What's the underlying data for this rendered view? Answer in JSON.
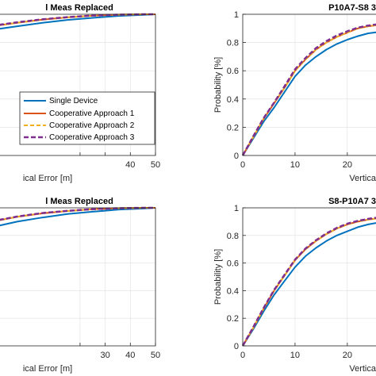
{
  "colors": {
    "single": "#0072bd",
    "coop1": "#d95319",
    "coop2": "#edb120",
    "coop3": "#7e2f8e",
    "axis": "#262626",
    "grid": "#dfdfdf"
  },
  "legend": {
    "entries": [
      "Single Device",
      "Cooperative Approach 1",
      "Cooperative Approach 2",
      "Cooperative Approach 3"
    ]
  },
  "chart_data": [
    {
      "type": "line",
      "title": "l Meas Replaced",
      "xlabel": "ical Error [m]",
      "ylabel": "",
      "xlim": [
        -15,
        50
      ],
      "ylim": [
        0,
        1
      ],
      "xticks": [
        20,
        30,
        40,
        50
      ],
      "xtick_labels": [
        "",
        "",
        "40",
        "50"
      ],
      "yticks": [],
      "grid": true,
      "legend_visible": true,
      "legend_position": "lower-right",
      "series": [
        {
          "key": "single",
          "x": [
            -15,
            -5,
            5,
            15,
            25,
            35,
            45,
            50
          ],
          "y": [
            0.89,
            0.915,
            0.94,
            0.96,
            0.975,
            0.988,
            0.996,
            1.0
          ]
        },
        {
          "key": "coop1",
          "x": [
            -15,
            -5,
            5,
            15,
            25,
            35,
            45,
            50
          ],
          "y": [
            0.915,
            0.94,
            0.962,
            0.978,
            0.99,
            0.997,
            1.0,
            1.0
          ]
        },
        {
          "key": "coop2",
          "x": [
            -15,
            -5,
            5,
            15,
            25,
            35,
            45,
            50
          ],
          "y": [
            0.915,
            0.94,
            0.962,
            0.978,
            0.99,
            0.997,
            1.0,
            1.0
          ]
        },
        {
          "key": "coop3",
          "x": [
            -15,
            -5,
            5,
            15,
            25,
            35,
            45,
            50
          ],
          "y": [
            0.918,
            0.943,
            0.964,
            0.98,
            0.991,
            0.997,
            1.0,
            1.0
          ]
        }
      ]
    },
    {
      "type": "line",
      "title": "P10A7-S8 3",
      "xlabel": "Vertica",
      "ylabel": "Probability [%]",
      "xlim": [
        0,
        27
      ],
      "ylim": [
        0,
        1
      ],
      "xticks": [
        0,
        10,
        20
      ],
      "xtick_labels": [
        "0",
        "10",
        "20"
      ],
      "yticks": [
        0,
        0.2,
        0.4,
        0.6,
        0.8,
        1
      ],
      "ytick_labels": [
        "0",
        "0.2",
        "0.4",
        "0.6",
        "0.8",
        "1"
      ],
      "grid": true,
      "legend_visible": false,
      "series": [
        {
          "key": "single",
          "x": [
            0,
            2,
            4,
            6,
            8,
            10,
            12,
            14,
            16,
            18,
            20,
            22,
            24,
            27
          ],
          "y": [
            0,
            0.12,
            0.24,
            0.34,
            0.45,
            0.56,
            0.64,
            0.7,
            0.75,
            0.79,
            0.82,
            0.845,
            0.865,
            0.88
          ]
        },
        {
          "key": "coop1",
          "x": [
            0,
            2,
            4,
            6,
            8,
            10,
            12,
            14,
            16,
            18,
            20,
            22,
            24,
            27
          ],
          "y": [
            0,
            0.13,
            0.26,
            0.37,
            0.48,
            0.6,
            0.68,
            0.75,
            0.8,
            0.84,
            0.87,
            0.9,
            0.915,
            0.93
          ]
        },
        {
          "key": "coop2",
          "x": [
            0,
            2,
            4,
            6,
            8,
            10,
            12,
            14,
            16,
            18,
            20,
            22,
            24,
            27
          ],
          "y": [
            0,
            0.13,
            0.26,
            0.37,
            0.48,
            0.6,
            0.68,
            0.75,
            0.8,
            0.84,
            0.87,
            0.9,
            0.915,
            0.93
          ]
        },
        {
          "key": "coop3",
          "x": [
            0,
            2,
            4,
            6,
            8,
            10,
            12,
            14,
            16,
            18,
            20,
            22,
            24,
            27
          ],
          "y": [
            0,
            0.135,
            0.265,
            0.375,
            0.49,
            0.61,
            0.69,
            0.76,
            0.81,
            0.85,
            0.88,
            0.905,
            0.92,
            0.935
          ]
        }
      ]
    },
    {
      "type": "line",
      "title": "l Meas Replaced",
      "xlabel": "ical Error [m]",
      "ylabel": "",
      "xlim": [
        -15,
        50
      ],
      "ylim": [
        0,
        1
      ],
      "xticks": [
        20,
        30,
        40,
        50
      ],
      "xtick_labels": [
        "",
        "30",
        "40",
        "50"
      ],
      "yticks": [],
      "grid": true,
      "legend_visible": false,
      "series": [
        {
          "key": "single",
          "x": [
            -15,
            -5,
            5,
            15,
            25,
            35,
            45,
            50
          ],
          "y": [
            0.86,
            0.9,
            0.93,
            0.955,
            0.972,
            0.987,
            0.995,
            1.0
          ]
        },
        {
          "key": "coop1",
          "x": [
            -15,
            -5,
            5,
            15,
            25,
            35,
            45,
            50
          ],
          "y": [
            0.9,
            0.935,
            0.96,
            0.977,
            0.99,
            0.997,
            1.0,
            1.0
          ]
        },
        {
          "key": "coop2",
          "x": [
            -15,
            -5,
            5,
            15,
            25,
            35,
            45,
            50
          ],
          "y": [
            0.9,
            0.935,
            0.96,
            0.977,
            0.99,
            0.997,
            1.0,
            1.0
          ]
        },
        {
          "key": "coop3",
          "x": [
            -15,
            -5,
            5,
            15,
            25,
            35,
            45,
            50
          ],
          "y": [
            0.903,
            0.937,
            0.962,
            0.978,
            0.99,
            0.997,
            1.0,
            1.0
          ]
        }
      ]
    },
    {
      "type": "line",
      "title": "S8-P10A7 3",
      "xlabel": "Vertica",
      "ylabel": "Probability [%]",
      "xlim": [
        0,
        27
      ],
      "ylim": [
        0,
        1
      ],
      "xticks": [
        0,
        10,
        20
      ],
      "xtick_labels": [
        "0",
        "10",
        "20"
      ],
      "yticks": [
        0,
        0.2,
        0.4,
        0.6,
        0.8,
        1
      ],
      "ytick_labels": [
        "0",
        "0.2",
        "0.4",
        "0.6",
        "0.8",
        "1"
      ],
      "grid": true,
      "legend_visible": false,
      "series": [
        {
          "key": "single",
          "x": [
            0,
            2,
            4,
            6,
            8,
            10,
            12,
            14,
            16,
            18,
            20,
            22,
            24,
            27
          ],
          "y": [
            0,
            0.12,
            0.25,
            0.37,
            0.47,
            0.57,
            0.65,
            0.71,
            0.76,
            0.8,
            0.83,
            0.86,
            0.88,
            0.9
          ]
        },
        {
          "key": "coop1",
          "x": [
            0,
            2,
            4,
            6,
            8,
            10,
            12,
            14,
            16,
            18,
            20,
            22,
            24,
            27
          ],
          "y": [
            0,
            0.13,
            0.27,
            0.4,
            0.51,
            0.62,
            0.7,
            0.76,
            0.81,
            0.85,
            0.88,
            0.9,
            0.915,
            0.93
          ]
        },
        {
          "key": "coop2",
          "x": [
            0,
            2,
            4,
            6,
            8,
            10,
            12,
            14,
            16,
            18,
            20,
            22,
            24,
            27
          ],
          "y": [
            0,
            0.13,
            0.27,
            0.4,
            0.51,
            0.62,
            0.7,
            0.76,
            0.81,
            0.85,
            0.88,
            0.9,
            0.915,
            0.93
          ]
        },
        {
          "key": "coop3",
          "x": [
            0,
            2,
            4,
            6,
            8,
            10,
            12,
            14,
            16,
            18,
            20,
            22,
            24,
            27
          ],
          "y": [
            0,
            0.135,
            0.275,
            0.405,
            0.515,
            0.625,
            0.705,
            0.765,
            0.815,
            0.855,
            0.885,
            0.905,
            0.92,
            0.935
          ]
        }
      ]
    }
  ]
}
